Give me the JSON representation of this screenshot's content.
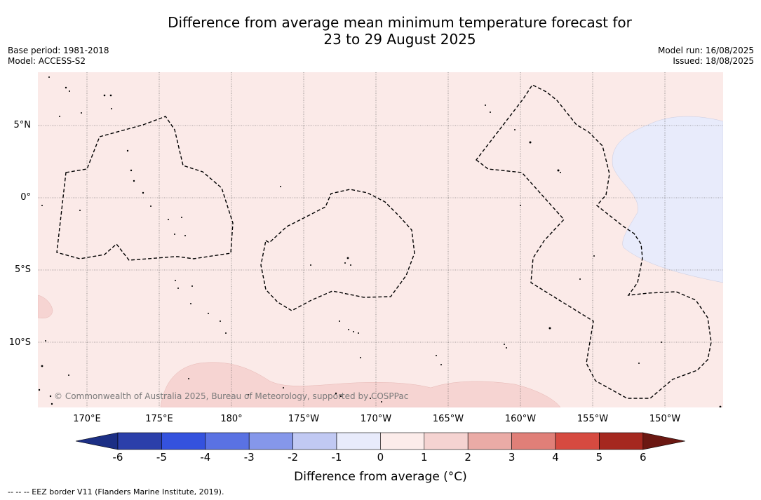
{
  "title": {
    "line1": "Difference from average mean minimum temperature forecast for",
    "line2": "23 to 29 August 2025"
  },
  "meta_left": {
    "base_period": "Base period: 1981-2018",
    "model": "Model: ACCESS-S2"
  },
  "meta_right": {
    "model_run": "Model run: 16/08/2025",
    "issued": "Issued: 18/08/2025"
  },
  "latitude_labels": [
    "5°N",
    "0°",
    "5°S",
    "10°S"
  ],
  "longitude_labels": [
    "170°E",
    "175°E",
    "180°",
    "175°W",
    "170°W",
    "165°W",
    "160°W",
    "155°W",
    "150°W"
  ],
  "copyright": "© Commonwealth of Australia 2025, Bureau of Meteorology, supported by COSPPac",
  "colorbar": {
    "ticks": [
      "-6",
      "-5",
      "-4",
      "-3",
      "-2",
      "-1",
      "0",
      "1",
      "2",
      "3",
      "4",
      "5",
      "6"
    ],
    "colors": [
      "#1c2f85",
      "#2b3faa",
      "#3452de",
      "#5a72e3",
      "#8597ea",
      "#c1c9f3",
      "#e8ebfb",
      "#fcecea",
      "#f5d3d1",
      "#eaaba6",
      "#e07f78",
      "#d64a40",
      "#a5281f",
      "#6b1812"
    ],
    "label": "Difference from average (°C)"
  },
  "legend_note": "-- -- -- EEZ border V11 (Flanders Marine Institute, 2019).",
  "map_colors": {
    "background": "#fbeae8",
    "warm_patch": "#f6d4d2",
    "cool_patch": "#e8ebfb"
  }
}
